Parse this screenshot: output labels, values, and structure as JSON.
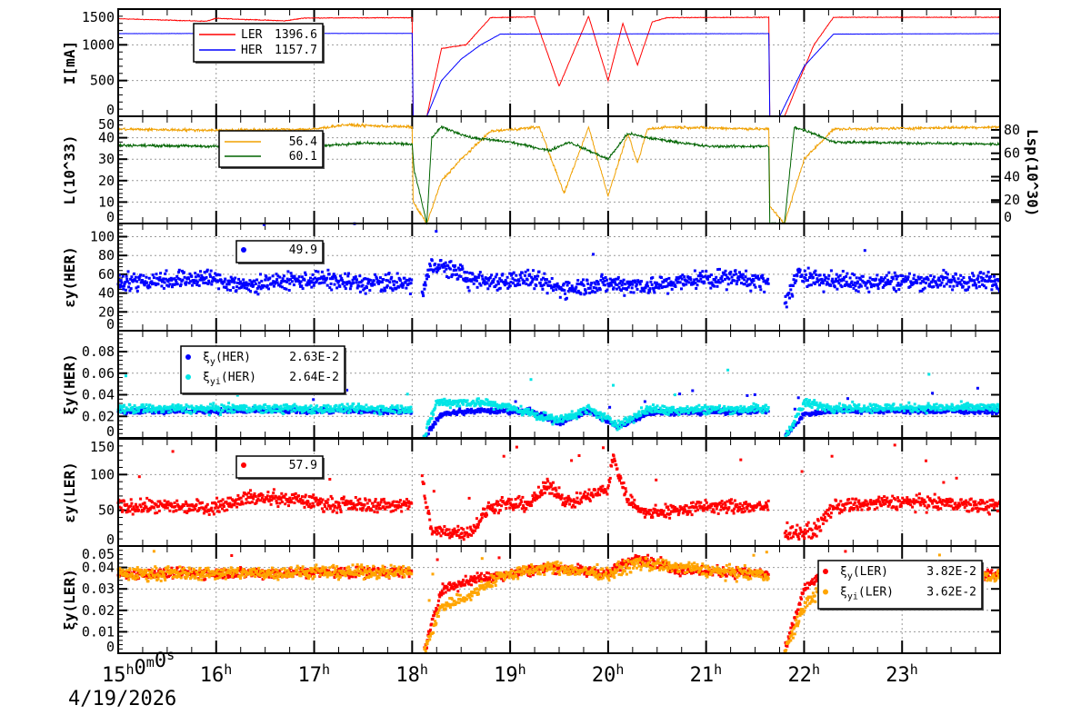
{
  "x_axis": {
    "start_label": "15h0m0s",
    "hour_labels": [
      "16h",
      "17h",
      "18h",
      "19h",
      "20h",
      "21h",
      "22h",
      "23h"
    ],
    "date": "4/19/2026",
    "range_hours": [
      15,
      24
    ]
  },
  "chart_data": [
    {
      "type": "line",
      "ylabel": "I[mA]",
      "ylim": [
        0,
        1500
      ],
      "yticks": [
        "0",
        "500",
        "1000",
        "1500"
      ],
      "grid": true,
      "legend": {
        "position": "top-left",
        "entries": [
          {
            "name": "LER",
            "value": "1396.6",
            "color": "#ff0000"
          },
          {
            "name": "HER",
            "value": "1157.7",
            "color": "#0000ff"
          }
        ]
      },
      "series": [
        {
          "name": "LER",
          "color": "#ff0000",
          "points": [
            [
              15,
              1365
            ],
            [
              15.9,
              1330
            ],
            [
              16,
              1370
            ],
            [
              16.7,
              1335
            ],
            [
              16.9,
              1375
            ],
            [
              18.0,
              1380
            ],
            [
              18.01,
              0
            ],
            [
              18.15,
              0
            ],
            [
              18.3,
              950
            ],
            [
              18.55,
              1000
            ],
            [
              18.8,
              1380
            ],
            [
              19.25,
              1390
            ],
            [
              19.5,
              420
            ],
            [
              19.8,
              1400
            ],
            [
              20.0,
              500
            ],
            [
              20.15,
              1300
            ],
            [
              20.3,
              720
            ],
            [
              20.45,
              1320
            ],
            [
              20.6,
              1380
            ],
            [
              21.64,
              1385
            ],
            [
              21.65,
              0
            ],
            [
              21.8,
              0
            ],
            [
              22.1,
              1000
            ],
            [
              22.3,
              1385
            ],
            [
              24,
              1385
            ]
          ]
        },
        {
          "name": "HER",
          "color": "#0000ff",
          "points": [
            [
              15,
              1157
            ],
            [
              18.0,
              1160
            ],
            [
              18.01,
              0
            ],
            [
              18.15,
              0
            ],
            [
              18.3,
              500
            ],
            [
              18.5,
              800
            ],
            [
              18.7,
              1000
            ],
            [
              18.9,
              1150
            ],
            [
              21.64,
              1157
            ],
            [
              21.65,
              0
            ],
            [
              21.75,
              0
            ],
            [
              22.0,
              700
            ],
            [
              22.3,
              1150
            ],
            [
              24,
              1157
            ]
          ]
        }
      ]
    },
    {
      "type": "line",
      "ylabel": "L(10^33)",
      "y2label": "Lsp(10^30)",
      "ylim": [
        0,
        50
      ],
      "y2lim": [
        0,
        91.6
      ],
      "yticks": [
        "0",
        "10",
        "20",
        "30",
        "40",
        "50"
      ],
      "y2ticks": [
        "0",
        "20",
        "40",
        "60",
        "80"
      ],
      "grid": true,
      "legend": {
        "position": "top-left",
        "entries": [
          {
            "name": "",
            "value": "56.4",
            "color": "#f0a000"
          },
          {
            "name": "",
            "value": "60.1",
            "color": "#006400"
          }
        ]
      },
      "series": [
        {
          "name": "",
          "color": "#f0a000",
          "points": [
            [
              15,
              44
            ],
            [
              16,
              43.5
            ],
            [
              17,
              44
            ],
            [
              17.3,
              46
            ],
            [
              18.0,
              45
            ],
            [
              18.01,
              10
            ],
            [
              18.15,
              0
            ],
            [
              18.3,
              20
            ],
            [
              18.5,
              30
            ],
            [
              18.8,
              43
            ],
            [
              19.3,
              45
            ],
            [
              19.55,
              14
            ],
            [
              19.8,
              45
            ],
            [
              20.0,
              13
            ],
            [
              20.2,
              42
            ],
            [
              20.3,
              28
            ],
            [
              20.4,
              44
            ],
            [
              20.6,
              45
            ],
            [
              21.64,
              44
            ],
            [
              21.65,
              8
            ],
            [
              21.8,
              0
            ],
            [
              22.0,
              30
            ],
            [
              22.3,
              44
            ],
            [
              24,
              45
            ]
          ]
        },
        {
          "name": "",
          "color": "#006400",
          "points": [
            [
              15,
              36.5
            ],
            [
              16,
              36
            ],
            [
              17,
              36
            ],
            [
              17.5,
              37.5
            ],
            [
              18.0,
              37
            ],
            [
              18.02,
              25
            ],
            [
              18.15,
              0
            ],
            [
              18.2,
              40
            ],
            [
              18.3,
              45
            ],
            [
              18.6,
              40
            ],
            [
              19.0,
              38
            ],
            [
              19.4,
              34
            ],
            [
              19.6,
              38
            ],
            [
              20.0,
              30
            ],
            [
              20.2,
              42
            ],
            [
              20.4,
              40
            ],
            [
              21.0,
              36
            ],
            [
              21.64,
              36
            ],
            [
              21.65,
              0
            ],
            [
              21.8,
              0
            ],
            [
              21.9,
              45
            ],
            [
              22.1,
              42
            ],
            [
              22.3,
              38
            ],
            [
              24,
              37
            ]
          ]
        }
      ]
    },
    {
      "type": "scatter",
      "ylabel": "εy(HER)",
      "ylim": [
        0,
        114
      ],
      "yticks": [
        "0",
        "20",
        "40",
        "60",
        "80",
        "100"
      ],
      "grid": true,
      "legend": {
        "position": "top-left",
        "entries": [
          {
            "name": "",
            "value": "49.9",
            "color": "#0000ff"
          }
        ]
      },
      "series": [
        {
          "name": "",
          "color": "#0000ff",
          "points": [
            [
              15,
              52
            ],
            [
              15.9,
              56
            ],
            [
              16.3,
              48
            ],
            [
              17.0,
              55
            ],
            [
              17.5,
              50
            ],
            [
              18.0,
              50
            ],
            [
              18.05,
              null
            ],
            [
              18.1,
              38
            ],
            [
              18.2,
              70
            ],
            [
              18.5,
              62
            ],
            [
              18.6,
              52
            ],
            [
              19.2,
              55
            ],
            [
              19.5,
              45
            ],
            [
              20.0,
              50
            ],
            [
              20.5,
              48
            ],
            [
              21.0,
              56
            ],
            [
              21.4,
              55
            ],
            [
              21.64,
              50
            ],
            [
              21.65,
              null
            ],
            [
              21.8,
              30
            ],
            [
              21.95,
              60
            ],
            [
              22.3,
              52
            ],
            [
              23.0,
              53
            ],
            [
              24,
              52
            ]
          ]
        }
      ]
    },
    {
      "type": "scatter",
      "ylabel": "ξy(HER)",
      "ylim": [
        0,
        0.0994
      ],
      "yticks": [
        "0",
        "0.02",
        "0.04",
        "0.06",
        "0.08"
      ],
      "grid": true,
      "legend": {
        "position": "top-left",
        "entries": [
          {
            "name": "ξy(HER)",
            "value": "2.63E-2",
            "color": "#0000ff"
          },
          {
            "name": "ξyi(HER)",
            "value": "2.64E-2",
            "color": "#00e5e5"
          }
        ]
      },
      "series": [
        {
          "name": "ξy(HER)",
          "color": "#0000ff",
          "points": [
            [
              15,
              0.025
            ],
            [
              18.0,
              0.025
            ],
            [
              18.05,
              null
            ],
            [
              18.12,
              0
            ],
            [
              18.3,
              0.022
            ],
            [
              18.6,
              0.025
            ],
            [
              19.2,
              0.025
            ],
            [
              19.5,
              0.014
            ],
            [
              19.8,
              0.025
            ],
            [
              20.1,
              0.01
            ],
            [
              20.4,
              0.023
            ],
            [
              21.64,
              0.025
            ],
            [
              21.65,
              null
            ],
            [
              21.8,
              0
            ],
            [
              22.0,
              0.022
            ],
            [
              22.3,
              0.025
            ],
            [
              24,
              0.025
            ]
          ]
        },
        {
          "name": "ξyi(HER)",
          "color": "#00e5e5",
          "points": [
            [
              15,
              0.027
            ],
            [
              18.0,
              0.027
            ],
            [
              18.05,
              null
            ],
            [
              18.12,
              0
            ],
            [
              18.25,
              0.033
            ],
            [
              18.7,
              0.033
            ],
            [
              19.0,
              0.028
            ],
            [
              19.5,
              0.016
            ],
            [
              19.8,
              0.027
            ],
            [
              20.1,
              0.012
            ],
            [
              20.4,
              0.026
            ],
            [
              21.64,
              0.027
            ],
            [
              21.65,
              null
            ],
            [
              21.8,
              0
            ],
            [
              22.0,
              0.032
            ],
            [
              22.3,
              0.028
            ],
            [
              24,
              0.028
            ]
          ]
        }
      ]
    },
    {
      "type": "scatter",
      "ylabel": "εy(LER)",
      "ylim": [
        0,
        150
      ],
      "yticks": [
        "0",
        "50",
        "100",
        "150"
      ],
      "grid": true,
      "legend": {
        "position": "top-left",
        "entries": [
          {
            "name": "",
            "value": "57.9",
            "color": "#ff0000"
          }
        ]
      },
      "series": [
        {
          "name": "",
          "color": "#ff0000",
          "points": [
            [
              15,
              55
            ],
            [
              16.0,
              55
            ],
            [
              16.3,
              68
            ],
            [
              16.8,
              65
            ],
            [
              17.2,
              58
            ],
            [
              18.0,
              57
            ],
            [
              18.05,
              null
            ],
            [
              18.1,
              95
            ],
            [
              18.2,
              20
            ],
            [
              18.6,
              20
            ],
            [
              18.8,
              55
            ],
            [
              19.2,
              60
            ],
            [
              19.4,
              85
            ],
            [
              19.6,
              60
            ],
            [
              20.0,
              80
            ],
            [
              20.05,
              125
            ],
            [
              20.2,
              65
            ],
            [
              20.4,
              45
            ],
            [
              21.0,
              55
            ],
            [
              21.64,
              55
            ],
            [
              21.65,
              null
            ],
            [
              21.8,
              20
            ],
            [
              22.1,
              20
            ],
            [
              22.3,
              55
            ],
            [
              23.0,
              62
            ],
            [
              24,
              55
            ]
          ]
        }
      ]
    },
    {
      "type": "scatter",
      "ylabel": "ξy(LER)",
      "ylim": [
        0,
        0.05
      ],
      "yticks": [
        "0",
        "0.01",
        "0.02",
        "0.03",
        "0.04",
        "0.05"
      ],
      "grid": true,
      "legend": {
        "position": "top-right",
        "entries": [
          {
            "name": "ξy(LER)",
            "value": "3.82E-2",
            "color": "#ff0000"
          },
          {
            "name": "ξyi(LER)",
            "value": "3.62E-2",
            "color": "#ffa500"
          }
        ]
      },
      "series": [
        {
          "name": "ξy(LER)",
          "color": "#ff0000",
          "points": [
            [
              15,
              0.037
            ],
            [
              18.0,
              0.038
            ],
            [
              18.05,
              null
            ],
            [
              18.12,
              0
            ],
            [
              18.3,
              0.03
            ],
            [
              18.7,
              0.035
            ],
            [
              19.4,
              0.04
            ],
            [
              20.0,
              0.037
            ],
            [
              20.3,
              0.045
            ],
            [
              20.7,
              0.039
            ],
            [
              21.64,
              0.037
            ],
            [
              21.65,
              null
            ],
            [
              21.8,
              0
            ],
            [
              22.0,
              0.03
            ],
            [
              22.2,
              0.037
            ],
            [
              24,
              0.037
            ]
          ]
        },
        {
          "name": "ξyi(LER)",
          "color": "#ffa500",
          "points": [
            [
              15,
              0.037
            ],
            [
              18.0,
              0.038
            ],
            [
              18.05,
              null
            ],
            [
              18.12,
              0
            ],
            [
              18.3,
              0.022
            ],
            [
              18.6,
              0.027
            ],
            [
              18.9,
              0.036
            ],
            [
              19.4,
              0.04
            ],
            [
              20.0,
              0.037
            ],
            [
              20.3,
              0.042
            ],
            [
              21.64,
              0.036
            ],
            [
              21.65,
              null
            ],
            [
              21.8,
              0
            ],
            [
              22.0,
              0.022
            ],
            [
              22.3,
              0.036
            ],
            [
              24,
              0.036
            ]
          ]
        }
      ]
    }
  ]
}
